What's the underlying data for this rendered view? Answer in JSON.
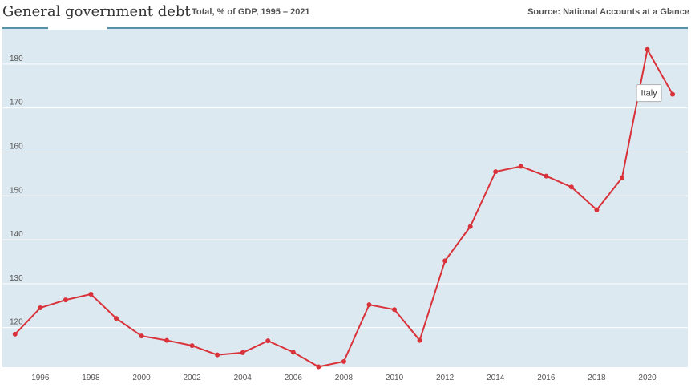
{
  "header": {
    "title": "General government debt",
    "subtitle": "Total, % of GDP, 1995 – 2021",
    "source": "Source: National Accounts at a Glance"
  },
  "colors": {
    "plot_background": "#dde9f1",
    "gridline": "#ffffff",
    "header_rule": "#1e6e8c",
    "series": "#d9323a"
  },
  "chart_data": {
    "type": "line",
    "title": "General government debt",
    "subtitle": "Total, % of GDP, 1995 – 2021",
    "xlabel": "",
    "ylabel": "",
    "xlim": [
      1994.5,
      2021.6
    ],
    "ylim": [
      111,
      188
    ],
    "x_ticks": [
      "1996",
      "1998",
      "2000",
      "2002",
      "2004",
      "2006",
      "2008",
      "2010",
      "2012",
      "2014",
      "2016",
      "2018",
      "2020"
    ],
    "y_ticks": [
      "120",
      "130",
      "140",
      "150",
      "160",
      "170",
      "180"
    ],
    "grid": true,
    "legend": "none",
    "series": [
      {
        "name": "Italy",
        "x": [
          1995,
          1996,
          1997,
          1998,
          1999,
          2000,
          2001,
          2002,
          2003,
          2004,
          2005,
          2006,
          2007,
          2008,
          2009,
          2010,
          2011,
          2012,
          2013,
          2014,
          2015,
          2016,
          2017,
          2018,
          2019,
          2020,
          2021
        ],
        "values": [
          118.5,
          124.5,
          126.3,
          127.6,
          122.1,
          118.1,
          117.1,
          115.9,
          113.8,
          114.3,
          117.0,
          114.4,
          111.1,
          112.3,
          125.2,
          124.1,
          117.1,
          135.2,
          143.0,
          155.5,
          156.7,
          154.5,
          152.0,
          146.8,
          154.1,
          183.3,
          173.1
        ]
      }
    ],
    "annotations": [
      {
        "text": "Italy",
        "series": "Italy"
      }
    ]
  }
}
